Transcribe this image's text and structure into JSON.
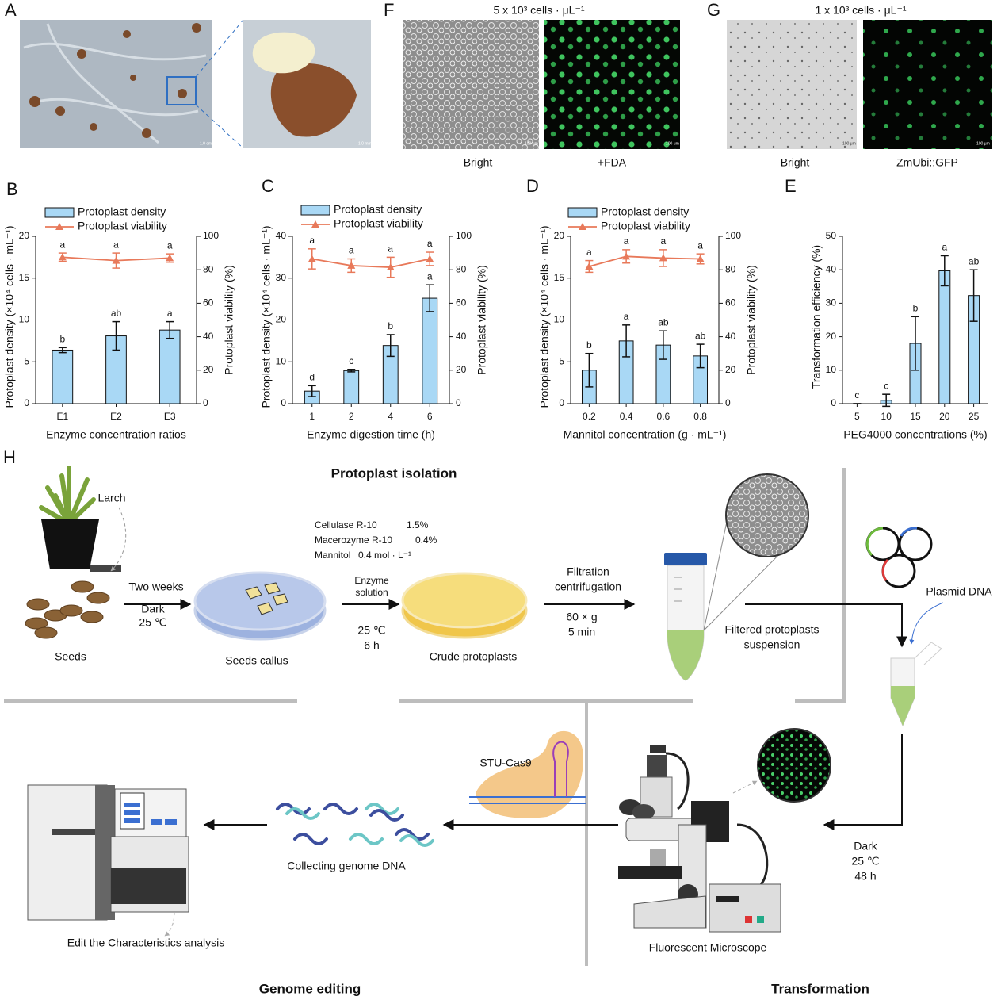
{
  "photos": {
    "A": {
      "label": "A",
      "scale_bars": [
        "1.0 cm",
        "1.0 mm"
      ]
    },
    "F": {
      "label": "F",
      "title": "5 x 10³ cells · μL⁻¹",
      "captions": [
        "Bright",
        "+FDA"
      ],
      "scale_bars": [
        "100 μm",
        "100 μm"
      ]
    },
    "G": {
      "label": "G",
      "title": "1 x 10³ cells · μL⁻¹",
      "captions": [
        "Bright",
        "ZmUbi::GFP"
      ],
      "scale_bars": [
        "100 μm",
        "100 μm"
      ]
    }
  },
  "chart_data": [
    {
      "type": "combo",
      "panel": "B",
      "xlabel": "Enzyme concentration ratios",
      "ylabel": "Protoplast density (×10⁴ cells · mL⁻¹)",
      "y2label": "Protoplast viability (%)",
      "categories": [
        "E1",
        "E2",
        "E3"
      ],
      "series": [
        {
          "name": "Protoplast density",
          "color": "#a9d8f5",
          "values": [
            6.4,
            8.1,
            8.8
          ],
          "errors": [
            0.3,
            1.7,
            1.0
          ],
          "significance": [
            "b",
            "ab",
            "a"
          ]
        },
        {
          "name": "Protoplast viability",
          "color": "#e8795a",
          "axis": "y2",
          "values": [
            87.5,
            85.5,
            87
          ],
          "errors": [
            2.5,
            4.5,
            2.5
          ],
          "significance": [
            "a",
            "a",
            "a"
          ]
        }
      ],
      "ylim": [
        0,
        20
      ],
      "yticks": [
        0,
        5,
        10,
        15,
        20
      ],
      "y2lim": [
        0,
        100
      ],
      "y2ticks": [
        0,
        20,
        40,
        60,
        80,
        100
      ]
    },
    {
      "type": "combo",
      "panel": "C",
      "xlabel": "Enzyme digestion  time (h)",
      "ylabel": "Protoplast density (×10⁴ cells · mL⁻¹)",
      "y2label": "Protoplast viability (%)",
      "categories": [
        "1",
        "2",
        "4",
        "6"
      ],
      "series": [
        {
          "name": "Protoplast density",
          "color": "#a9d8f5",
          "values": [
            3,
            7.9,
            13.9,
            25.2
          ],
          "errors": [
            1.3,
            0.3,
            2.6,
            3.2
          ],
          "significance": [
            "d",
            "c",
            "b",
            "a"
          ]
        },
        {
          "name": "Protoplast viability",
          "color": "#e8795a",
          "axis": "y2",
          "values": [
            86.5,
            82.5,
            81.5,
            86.5
          ],
          "errors": [
            6,
            4,
            6,
            4
          ],
          "significance": [
            "a",
            "a",
            "a",
            "a"
          ]
        }
      ],
      "ylim": [
        0,
        40
      ],
      "yticks": [
        0,
        10,
        20,
        30,
        40
      ],
      "y2lim": [
        0,
        100
      ],
      "y2ticks": [
        0,
        20,
        40,
        60,
        80,
        100
      ]
    },
    {
      "type": "combo",
      "panel": "D",
      "xlabel": "Mannitol concentration (g · mL⁻¹)",
      "ylabel": "Protoplast density (×10⁴ cells · mL⁻¹)",
      "y2label": "Protoplast viability (%)",
      "categories": [
        "0.2",
        "0.4",
        "0.6",
        "0.8"
      ],
      "series": [
        {
          "name": "Protoplast density",
          "color": "#a9d8f5",
          "values": [
            4,
            7.5,
            7,
            5.7
          ],
          "errors": [
            2,
            1.9,
            1.7,
            1.4
          ],
          "significance": [
            "b",
            "a",
            "ab",
            "ab"
          ]
        },
        {
          "name": "Protoplast viability",
          "color": "#e8795a",
          "axis": "y2",
          "values": [
            82,
            88,
            87,
            86.5
          ],
          "errors": [
            3.5,
            4,
            5,
            3
          ],
          "significance": [
            "a",
            "a",
            "a",
            "a"
          ]
        }
      ],
      "ylim": [
        0,
        20
      ],
      "yticks": [
        0,
        5,
        10,
        15,
        20
      ],
      "y2lim": [
        0,
        100
      ],
      "y2ticks": [
        0,
        20,
        40,
        60,
        80,
        100
      ]
    },
    {
      "type": "bar",
      "panel": "E",
      "xlabel": "PEG4000 concentrations (%)",
      "ylabel": "Transformation efficiency (%)",
      "categories": [
        "5",
        "10",
        "15",
        "20",
        "25"
      ],
      "series": [
        {
          "color": "#a9d8f5",
          "values": [
            0,
            1,
            18,
            39.7,
            32.3
          ],
          "errors": [
            0,
            1.8,
            8,
            4.5,
            7.7
          ],
          "significance": [
            "c",
            "c",
            "b",
            "a",
            "ab"
          ]
        }
      ],
      "ylim": [
        0,
        50
      ],
      "yticks": [
        0,
        10,
        20,
        30,
        40,
        50
      ]
    }
  ],
  "diagram": {
    "label": "H",
    "title": "Protoplast isolation",
    "larch": "Larch",
    "incubation": [
      "Two  weeks",
      "Dark",
      "25 ℃"
    ],
    "seeds": "Seeds",
    "seeds_callus": "Seeds callus",
    "reagents": [
      [
        "Cellulase R-10",
        "1.5%"
      ],
      [
        "Macerozyme R-10",
        "0.4%"
      ],
      [
        "Mannitol",
        "0.4 mol · L⁻¹"
      ]
    ],
    "enzyme_solution": [
      "Enzyme",
      "solution"
    ],
    "digestion": [
      "25 ℃",
      "6 h"
    ],
    "crude": "Crude protoplasts",
    "filtration": [
      "Filtration",
      "centrifugation"
    ],
    "spin": [
      "60 × g",
      "5 min"
    ],
    "filtered": [
      "Filtered protoplasts",
      "suspension"
    ],
    "plasmid": "Plasmid DNA",
    "transformation_conditions": [
      "Dark",
      "25 ℃",
      "48 h"
    ],
    "cas9": "STU-Cas9",
    "collecting": "Collecting genome DNA",
    "analysis": "Edit the Characteristics analysis",
    "microscope": "Fluorescent Microscope",
    "genome_editing": "Genome editing",
    "transformation": "Transformation"
  }
}
